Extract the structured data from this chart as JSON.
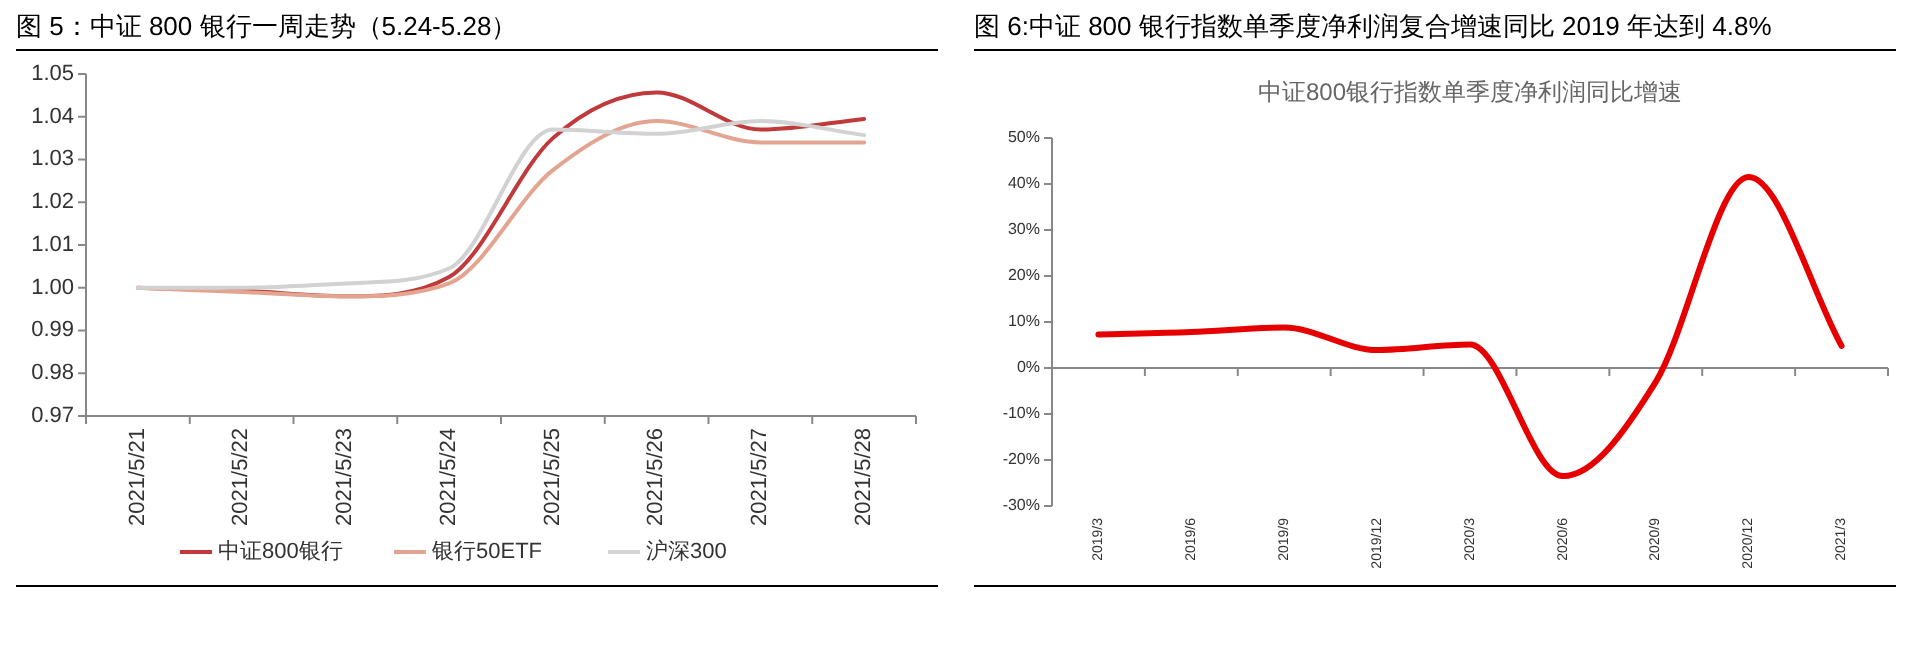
{
  "chart_data": [
    {
      "type": "line",
      "title": "图 5：中证 800 银行一周走势（5.24-5.28）",
      "categories": [
        "2021/5/21",
        "2021/5/22",
        "2021/5/23",
        "2021/5/24",
        "2021/5/25",
        "2021/5/26",
        "2021/5/27",
        "2021/5/28"
      ],
      "series": [
        {
          "name": "中证800银行",
          "color": "#c0393b",
          "values": [
            1.0,
            0.9993,
            0.998,
            1.0025,
            1.035,
            1.0457,
            1.037,
            1.0395
          ]
        },
        {
          "name": "银行50ETF",
          "color": "#e3a591",
          "values": [
            1.0,
            0.999,
            0.998,
            1.001,
            1.0275,
            1.039,
            1.034,
            1.034
          ]
        },
        {
          "name": "沪深300",
          "color": "#d2d2d2",
          "values": [
            1.0,
            1.0,
            1.001,
            1.0045,
            1.037,
            1.036,
            1.039,
            1.0357
          ]
        }
      ],
      "ylim": [
        0.97,
        1.05
      ],
      "yticks": [
        {
          "value": 0.97,
          "label": "0.97"
        },
        {
          "value": 0.98,
          "label": "0.98"
        },
        {
          "value": 0.99,
          "label": "0.99"
        },
        {
          "value": 1.0,
          "label": "1.00"
        },
        {
          "value": 1.01,
          "label": "1.01"
        },
        {
          "value": 1.02,
          "label": "1.02"
        },
        {
          "value": 1.03,
          "label": "1.03"
        },
        {
          "value": 1.04,
          "label": "1.04"
        },
        {
          "value": 1.05,
          "label": "1.05"
        }
      ],
      "legend": "bottom"
    },
    {
      "type": "line",
      "title": "图 6:中证 800 银行指数单季度净利润复合增速同比 2019 年达到 4.8%",
      "subtitle": "中证800银行指数单季度净利润同比增速",
      "categories": [
        "2019/3",
        "2019/6",
        "2019/9",
        "2019/12",
        "2020/3",
        "2020/6",
        "2020/9",
        "2020/12",
        "2021/3"
      ],
      "series": [
        {
          "color": "#e60000",
          "values": [
            7.3,
            7.8,
            8.8,
            3.9,
            5.1,
            -23.5,
            -3,
            41.5,
            4.8
          ]
        }
      ],
      "ylim": [
        -30,
        50
      ],
      "yticks": [
        {
          "value": -30,
          "label": "-30%"
        },
        {
          "value": -20,
          "label": "-20%"
        },
        {
          "value": -10,
          "label": "-10%"
        },
        {
          "value": 0,
          "label": "0%"
        },
        {
          "value": 10,
          "label": "10%"
        },
        {
          "value": 20,
          "label": "20%"
        },
        {
          "value": 30,
          "label": "30%"
        },
        {
          "value": 40,
          "label": "40%"
        },
        {
          "value": 50,
          "label": "50%"
        }
      ]
    }
  ]
}
